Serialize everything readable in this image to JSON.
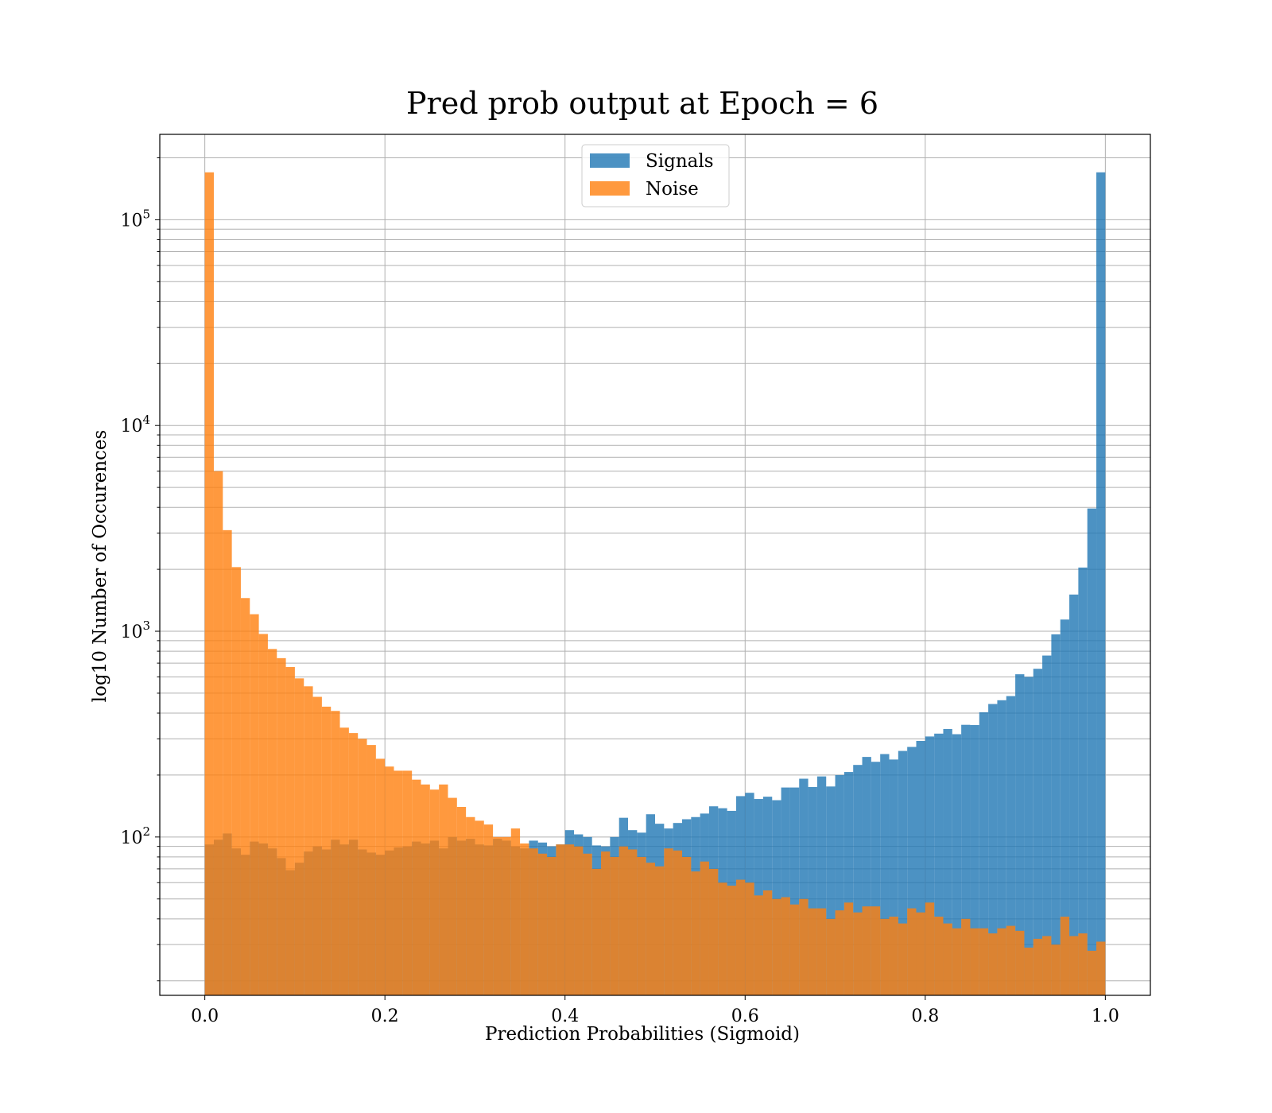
{
  "chart_data": {
    "type": "bar",
    "subtype": "histogram",
    "title": "Pred prob output at Epoch = 6",
    "xlabel": "Prediction Probabilities (Sigmoid)",
    "ylabel": "log10 Number of Occurences",
    "yscale": "log",
    "xlim": [
      -0.05,
      1.05
    ],
    "ylim": [
      17,
      260000
    ],
    "grid": true,
    "legend_position": "upper center",
    "bin_start": 0.0,
    "bin_width": 0.01,
    "x_ticks": [
      "0.0",
      "0.2",
      "0.4",
      "0.6",
      "0.8",
      "1.0"
    ],
    "x_tick_values": [
      0,
      0.2,
      0.4,
      0.6,
      0.8,
      1.0
    ],
    "y_ticks": [
      {
        "base": "10",
        "exp": "2",
        "value": 100
      },
      {
        "base": "10",
        "exp": "3",
        "value": 1000
      },
      {
        "base": "10",
        "exp": "4",
        "value": 10000
      },
      {
        "base": "10",
        "exp": "5",
        "value": 100000
      }
    ],
    "series": [
      {
        "name": "Signals",
        "color": "#1f77b4",
        "alpha": 0.8,
        "values": [
          92,
          97,
          104,
          88,
          82,
          95,
          93,
          88,
          79,
          69,
          75,
          85,
          90,
          87,
          97,
          92,
          97,
          87,
          84,
          82,
          86,
          89,
          90,
          95,
          93,
          96,
          88,
          100,
          96,
          98,
          92,
          91,
          98,
          96,
          90,
          88,
          96,
          94,
          90,
          92,
          108,
          103,
          100,
          91,
          90,
          100,
          124,
          108,
          105,
          129,
          116,
          110,
          117,
          122,
          125,
          130,
          141,
          138,
          134,
          158,
          164,
          153,
          157,
          151,
          174,
          174,
          192,
          175,
          197,
          176,
          200,
          207,
          224,
          245,
          232,
          253,
          238,
          262,
          274,
          293,
          308,
          318,
          335,
          316,
          351,
          350,
          404,
          443,
          462,
          484,
          618,
          600,
          657,
          762,
          966,
          1140,
          1508,
          2040,
          3950,
          170000
        ]
      },
      {
        "name": "Noise",
        "color": "#ff7f0e",
        "alpha": 0.8,
        "values": [
          170000,
          6000,
          3100,
          2050,
          1450,
          1210,
          970,
          820,
          740,
          670,
          590,
          540,
          480,
          430,
          410,
          340,
          320,
          300,
          280,
          240,
          220,
          210,
          210,
          190,
          180,
          170,
          180,
          155,
          140,
          125,
          120,
          115,
          100,
          100,
          110,
          93,
          88,
          83,
          80,
          92,
          92,
          90,
          83,
          70,
          85,
          80,
          90,
          87,
          80,
          75,
          72,
          88,
          86,
          80,
          68,
          76,
          70,
          60,
          58,
          62,
          60,
          52,
          55,
          50,
          51,
          47,
          50,
          45,
          45,
          40,
          44,
          48,
          43,
          46,
          46,
          40,
          41,
          38,
          45,
          43,
          48,
          41,
          38,
          36,
          40,
          36,
          36,
          34,
          36,
          37,
          35,
          29,
          32,
          33,
          30,
          41,
          33,
          34,
          28,
          31
        ]
      }
    ]
  }
}
